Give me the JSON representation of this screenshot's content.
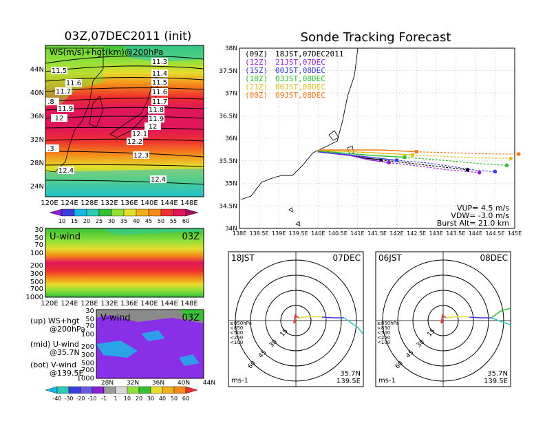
{
  "header": {
    "init_title": "03Z,07DEC2011 (init)",
    "tracking_title": "Sonde Tracking Forecast"
  },
  "colors": {
    "purple": "#8a1fd8",
    "blue": "#3c3cdc",
    "cyan": "#17b8e6",
    "teal": "#2fc9b5",
    "green": "#35c035",
    "lime": "#8fe03a",
    "yellow": "#e6dc2c",
    "amber": "#f0b01e",
    "orange": "#f58a1a",
    "red": "#ee3030",
    "crimson": "#e0165a",
    "gray": "#9a9a9a"
  },
  "map_panel": {
    "label": "WS(m/s)+hgt(km)@200hPa",
    "lat_labels": [
      "44N",
      "40N",
      "36N",
      "32N",
      "28N",
      "24N"
    ],
    "lon_labels": [
      "120E",
      "124E",
      "128E",
      "132E",
      "136E",
      "140E",
      "144E",
      "148E"
    ],
    "contour_labels": [
      "11.3",
      "11.4",
      "11.5",
      "11.6",
      "11.7",
      "11.8",
      "11.9",
      "12",
      "12.1",
      "12.2",
      "12.3",
      "12.4",
      "11.5",
      "11.6",
      "11.7",
      ".8",
      "11.9",
      "12",
      ".3",
      "12.4"
    ],
    "colorbar_labels": [
      "10",
      "15",
      "20",
      "25",
      "30",
      "35",
      "40",
      "45",
      "50",
      "55",
      "60"
    ]
  },
  "u_panel": {
    "title": "U-wind",
    "time": "03Z",
    "pressure_labels": [
      "30",
      "50",
      "70",
      "100",
      "200",
      "300",
      "500",
      "700",
      "1000"
    ],
    "lon_labels": [
      "120E",
      "124E",
      "128E",
      "132E",
      "136E",
      "140E",
      "144E",
      "148E"
    ]
  },
  "v_panel": {
    "title": "V-wind",
    "time": "03Z",
    "pressure_labels": [
      "30",
      "50",
      "70",
      "100",
      "200",
      "300",
      "500",
      "700",
      "1000"
    ],
    "lat_labels": [
      "28N",
      "32N",
      "36N",
      "40N",
      "44N"
    ],
    "colorbar_labels": [
      "-40",
      "-30",
      "-20",
      "-10",
      "-1",
      "1",
      "10",
      "20",
      "30",
      "40",
      "50",
      "60"
    ]
  },
  "legend_notes": {
    "up_line1": "(up) WS+hgt",
    "up_line2": "@200hPa",
    "mid_line1": "(mid) U-wind",
    "mid_line2": "@35.7N",
    "bot_line1": "(bot) V-wind",
    "bot_line2": "@139.5E"
  },
  "tracking_panel": {
    "lat_labels": [
      "38N",
      "37.5N",
      "37N",
      "36.5N",
      "36N",
      "35.5N",
      "35N",
      "34.5N",
      "34N"
    ],
    "lon_labels": [
      "138E",
      "138.5E",
      "139E",
      "139.5E",
      "140E",
      "140.5E",
      "141E",
      "141.5E",
      "142E",
      "142.5E",
      "143E",
      "143.5E",
      "144E",
      "144.5E",
      "145E"
    ],
    "launches": [
      {
        "utc": "(09Z)",
        "jst": "18JST,07DEC2011",
        "color": "#000000"
      },
      {
        "utc": "(12Z)",
        "jst": "21JST,07DEC",
        "color": "#9b1fd0"
      },
      {
        "utc": "(15Z)",
        "jst": "00JST,08DEC",
        "color": "#3c3cdc"
      },
      {
        "utc": "(18Z)",
        "jst": "03JST,08DEC",
        "color": "#2fc02f"
      },
      {
        "utc": "(21Z)",
        "jst": "06JST,08DEC",
        "color": "#e0c020"
      },
      {
        "utc": "(00Z)",
        "jst": "09JST,08DEC",
        "color": "#f07a1a"
      }
    ],
    "params": {
      "vup": "VUP= 4.5 m/s",
      "vdw": "VDW= -3.0 m/s",
      "burst": "Burst Alt= 21.0 km"
    }
  },
  "hodographs": [
    {
      "time": "18JST",
      "date": "07DEC",
      "ring_labels": [
        "15",
        "30",
        "45",
        "60"
      ],
      "unit": "ms-1",
      "lat": "35.7N",
      "lon": "139.5E",
      "levels": [
        "≥850hPa",
        "<850",
        "<500",
        "<250",
        "<100"
      ]
    },
    {
      "time": "06JST",
      "date": "08DEC",
      "ring_labels": [
        "15",
        "30",
        "45",
        "60"
      ],
      "unit": "ms-1",
      "lat": "35.7N",
      "lon": "139.5E",
      "levels": [
        "≥850hPa",
        "<850",
        "<500",
        "<250",
        "<100"
      ]
    }
  ],
  "chart_data": [
    {
      "type": "heatmap",
      "title": "03Z,07DEC2011 (init)",
      "field": "WS(m/s)+hgt(km)@200hPa",
      "xlim": [
        "120E",
        "150E"
      ],
      "ylim": [
        "22N",
        "48N"
      ],
      "contour_levels_km": [
        11.3,
        11.4,
        11.5,
        11.6,
        11.7,
        11.8,
        11.9,
        12.0,
        12.1,
        12.2,
        12.3,
        12.4
      ],
      "colorbar_m_s": [
        10,
        15,
        20,
        25,
        30,
        35,
        40,
        45,
        50,
        55,
        60
      ]
    },
    {
      "type": "heatmap",
      "title": "U-wind",
      "time": "03Z",
      "x": "longitude 120E-150E",
      "y": "pressure 1000-30 hPa"
    },
    {
      "type": "heatmap",
      "title": "V-wind",
      "time": "03Z",
      "x": "latitude 28N-44N",
      "y": "pressure 1000-30 hPa",
      "colorbar_m_s": [
        -40,
        -30,
        -20,
        -10,
        -1,
        1,
        10,
        20,
        30,
        40,
        50,
        60
      ]
    },
    {
      "type": "line",
      "title": "Sonde Tracking Forecast",
      "xlim": [
        138,
        145
      ],
      "ylim": [
        34,
        38
      ],
      "series": [
        {
          "name": "(09Z) 18JST,07DEC2011",
          "x": [
            140.0,
            140.8,
            141.2,
            141.6,
            142.3,
            143.0,
            143.5,
            143.8
          ],
          "y": [
            35.7,
            35.62,
            35.56,
            35.52,
            35.45,
            35.38,
            35.33,
            35.3
          ]
        },
        {
          "name": "(12Z) 21JST,07DEC",
          "x": [
            140.0,
            140.8,
            141.3,
            141.8,
            142.6,
            143.3,
            143.8,
            144.1
          ],
          "y": [
            35.7,
            35.62,
            35.52,
            35.46,
            35.38,
            35.3,
            35.26,
            35.24
          ]
        },
        {
          "name": "(15Z) 00JST,08DEC",
          "x": [
            140.0,
            140.8,
            141.4,
            142.0,
            142.8,
            143.5,
            144.0,
            144.5
          ],
          "y": [
            35.7,
            35.63,
            35.57,
            35.51,
            35.45,
            35.36,
            35.29,
            35.26
          ]
        },
        {
          "name": "(18Z) 03JST,08DEC",
          "x": [
            140.0,
            140.8,
            141.5,
            142.2,
            142.9,
            143.6,
            144.2,
            144.8
          ],
          "y": [
            35.72,
            35.66,
            35.61,
            35.58,
            35.53,
            35.48,
            35.43,
            35.4
          ]
        },
        {
          "name": "(21Z) 06JST,08DEC",
          "x": [
            140.0,
            140.9,
            141.6,
            142.4,
            143.2,
            143.9,
            144.5,
            144.9
          ],
          "y": [
            35.73,
            35.7,
            35.67,
            35.63,
            35.6,
            35.57,
            35.56,
            35.55
          ]
        },
        {
          "name": "(00Z) 09JST,08DEC",
          "x": [
            140.0,
            140.9,
            141.6,
            142.5,
            143.3,
            144.0,
            144.7,
            145.1
          ],
          "y": [
            35.74,
            35.74,
            35.74,
            35.7,
            35.68,
            35.66,
            35.65,
            35.65
          ]
        }
      ],
      "annotations": [
        "VUP= 4.5 m/s",
        "VDW= -3.0 m/s",
        "Burst Alt= 21.0 km"
      ]
    }
  ]
}
